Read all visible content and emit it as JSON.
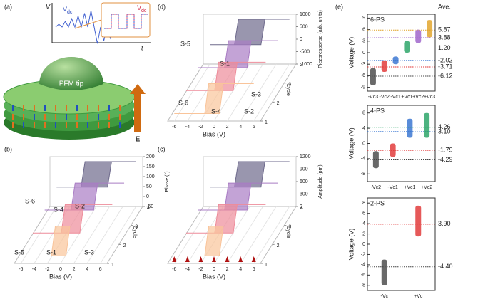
{
  "figure": {
    "a": {
      "label": "(a)",
      "v_axis": "V",
      "t_axis": "t",
      "vdc_symbol": "V",
      "vdc_subscript": "dc",
      "tip": "PFM tip",
      "field": "E"
    },
    "b": {
      "label": "(b)",
      "x_label": "Bias (V)",
      "x_ticks": [
        -6,
        -4,
        -2,
        0,
        2,
        4,
        6
      ],
      "xlim": [
        -7,
        7
      ],
      "y_label": "Cycle",
      "y_ticks": [
        1,
        2,
        3,
        4
      ],
      "ylim": [
        1,
        4
      ],
      "z_label": "Phase (°)",
      "z_ticks": [
        -50,
        0,
        50,
        100,
        150,
        200
      ],
      "zlim": [
        -50,
        200
      ],
      "states": [
        "S-6",
        "S-4",
        "S-2",
        "S-5",
        "S-1",
        "S-3"
      ],
      "colors": [
        "#f9c49a",
        "#ee8c9a",
        "#a97cc4",
        "#6e6a8c"
      ]
    },
    "c": {
      "label": "(c)",
      "x_label": "Bias (V)",
      "x_ticks": [
        -6,
        -4,
        -2,
        0,
        2,
        4,
        6
      ],
      "xlim": [
        -7,
        7
      ],
      "y_label": "Cycle",
      "y_ticks": [
        1,
        2,
        3,
        4
      ],
      "ylim": [
        1,
        4
      ],
      "z_label": "Amplitude (pm)",
      "z_ticks": [
        0,
        300,
        600,
        900,
        1200
      ],
      "zlim": [
        0,
        1200
      ],
      "states": [],
      "colors": [
        "#f9c49a",
        "#ee8c9a",
        "#a97cc4",
        "#6e6a8c"
      ]
    },
    "d": {
      "label": "(d)",
      "x_label": "Bias (V)",
      "x_ticks": [
        -6,
        -4,
        -2,
        0,
        2,
        4,
        6
      ],
      "xlim": [
        -7,
        7
      ],
      "y_label": "Cycle",
      "y_ticks": [
        1,
        2,
        3,
        4
      ],
      "ylim": [
        1,
        4
      ],
      "z_label": "Piezoresponse (arb. units)",
      "z_ticks": [
        -1000,
        -500,
        0,
        500,
        1000
      ],
      "zlim": [
        -1000,
        1000
      ],
      "states": [
        "S-5",
        "S-1",
        "S-3",
        "S-6",
        "S-4",
        "S-2"
      ],
      "colors": [
        "#f9c49a",
        "#ee8c9a",
        "#a97cc4",
        "#6e6a8c"
      ]
    },
    "e": {
      "label": "(e)",
      "average_heading": "Ave."
    }
  },
  "chart_data": [
    {
      "type": "strip",
      "title": "6-PS",
      "y_label": "Voltage (V)",
      "ylim": [
        -10,
        10
      ],
      "yticks": [
        -9,
        -6,
        -3,
        0,
        3,
        6,
        9
      ],
      "categories": [
        "-Vc3",
        "-Vc2",
        "-Vc1",
        "+Vc1",
        "+Vc2",
        "+Vc3"
      ],
      "colors": [
        "#444444",
        "#e03030",
        "#2f6fd0",
        "#20a060",
        "#9a5cc8",
        "#e0a020"
      ],
      "ranges": [
        [
          -8.5,
          -4
        ],
        [
          -5,
          -2
        ],
        [
          -3,
          -1
        ],
        [
          0,
          3
        ],
        [
          2.5,
          6
        ],
        [
          4,
          8.5
        ]
      ],
      "averages": [
        -6.12,
        -3.71,
        -2.02,
        1.2,
        3.88,
        5.87
      ],
      "average_labels": [
        "-6.12",
        "-3.71",
        "-2.02",
        "1.20",
        "3.88",
        "5.87"
      ]
    },
    {
      "type": "strip",
      "title": "4-PS",
      "y_label": "Voltage (V)",
      "ylim": [
        -10,
        10
      ],
      "yticks": [
        -8,
        -4,
        0,
        4,
        8
      ],
      "categories": [
        "-Vc2",
        "-Vc1",
        "+Vc1",
        "+Vc2"
      ],
      "colors": [
        "#444444",
        "#e03030",
        "#2f6fd0",
        "#20a060"
      ],
      "ranges": [
        [
          -6.5,
          -2
        ],
        [
          -3.5,
          0
        ],
        [
          1.5,
          6.5
        ],
        [
          1.5,
          8
        ]
      ],
      "averages": [
        -4.29,
        -1.79,
        3.1,
        4.26
      ],
      "average_labels": [
        "-4.29",
        "-1.79",
        "3.10",
        "4.26"
      ]
    },
    {
      "type": "strip",
      "title": "2-PS",
      "y_label": "Voltage (V)",
      "ylim": [
        -9,
        9
      ],
      "yticks": [
        -8,
        -6,
        -4,
        -2,
        0,
        2,
        4,
        6,
        8
      ],
      "categories": [
        "-Vc",
        "+Vc"
      ],
      "colors": [
        "#444444",
        "#e03030"
      ],
      "ranges": [
        [
          -8,
          -3
        ],
        [
          1.5,
          7.5
        ]
      ],
      "averages": [
        -4.4,
        3.9
      ],
      "average_labels": [
        "-4.40",
        "3.90"
      ]
    }
  ]
}
